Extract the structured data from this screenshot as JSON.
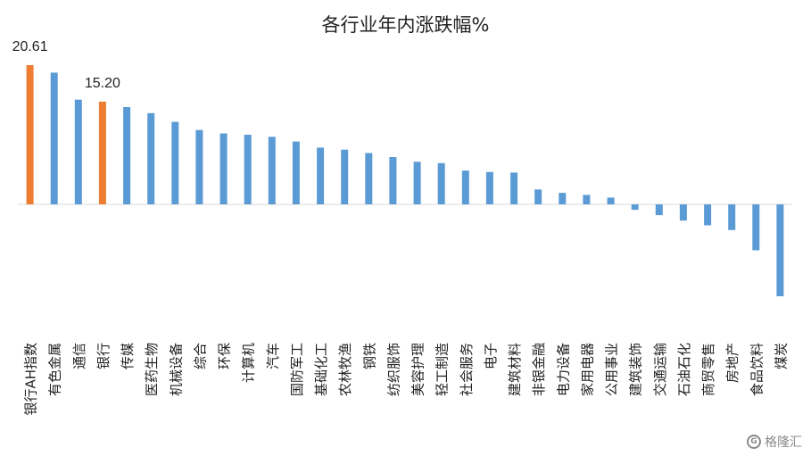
{
  "chart_data": {
    "type": "bar",
    "title": "各行业年内涨跌幅%",
    "categories": [
      "银行AH指数",
      "有色金属",
      "通信",
      "银行",
      "传媒",
      "医药生物",
      "机械设备",
      "综合",
      "环保",
      "计算机",
      "汽车",
      "国防军工",
      "基础化工",
      "农林牧渔",
      "钢铁",
      "纺织服饰",
      "美容护理",
      "轻工制造",
      "社会服务",
      "电子",
      "建筑材料",
      "非银金融",
      "电力设备",
      "家用电器",
      "公用事业",
      "建筑装饰",
      "交通运输",
      "石油石化",
      "商贸零售",
      "房地产",
      "食品饮料",
      "煤炭"
    ],
    "values": [
      20.61,
      19.5,
      15.5,
      15.2,
      14.4,
      13.5,
      12.2,
      11.0,
      10.5,
      10.3,
      10.0,
      9.3,
      8.4,
      8.1,
      7.6,
      7.0,
      6.3,
      6.1,
      5.0,
      4.8,
      4.7,
      2.2,
      1.7,
      1.4,
      1.0,
      -0.8,
      -1.6,
      -2.4,
      -3.1,
      -3.8,
      -6.8,
      -13.6
    ],
    "highlight": [
      "银行AH指数",
      "银行"
    ],
    "data_labels": {
      "银行AH指数": "20.61",
      "银行": "15.20"
    },
    "ylim": [
      -14,
      21
    ],
    "xlabel": "",
    "ylabel": "",
    "grid": false,
    "colors": {
      "default": "#5b9bd5",
      "highlight": "#ed7d31",
      "baseline": "#d9d9d9"
    }
  },
  "watermark": {
    "icon": "gelonghui-logo-icon",
    "text": "格隆汇"
  }
}
